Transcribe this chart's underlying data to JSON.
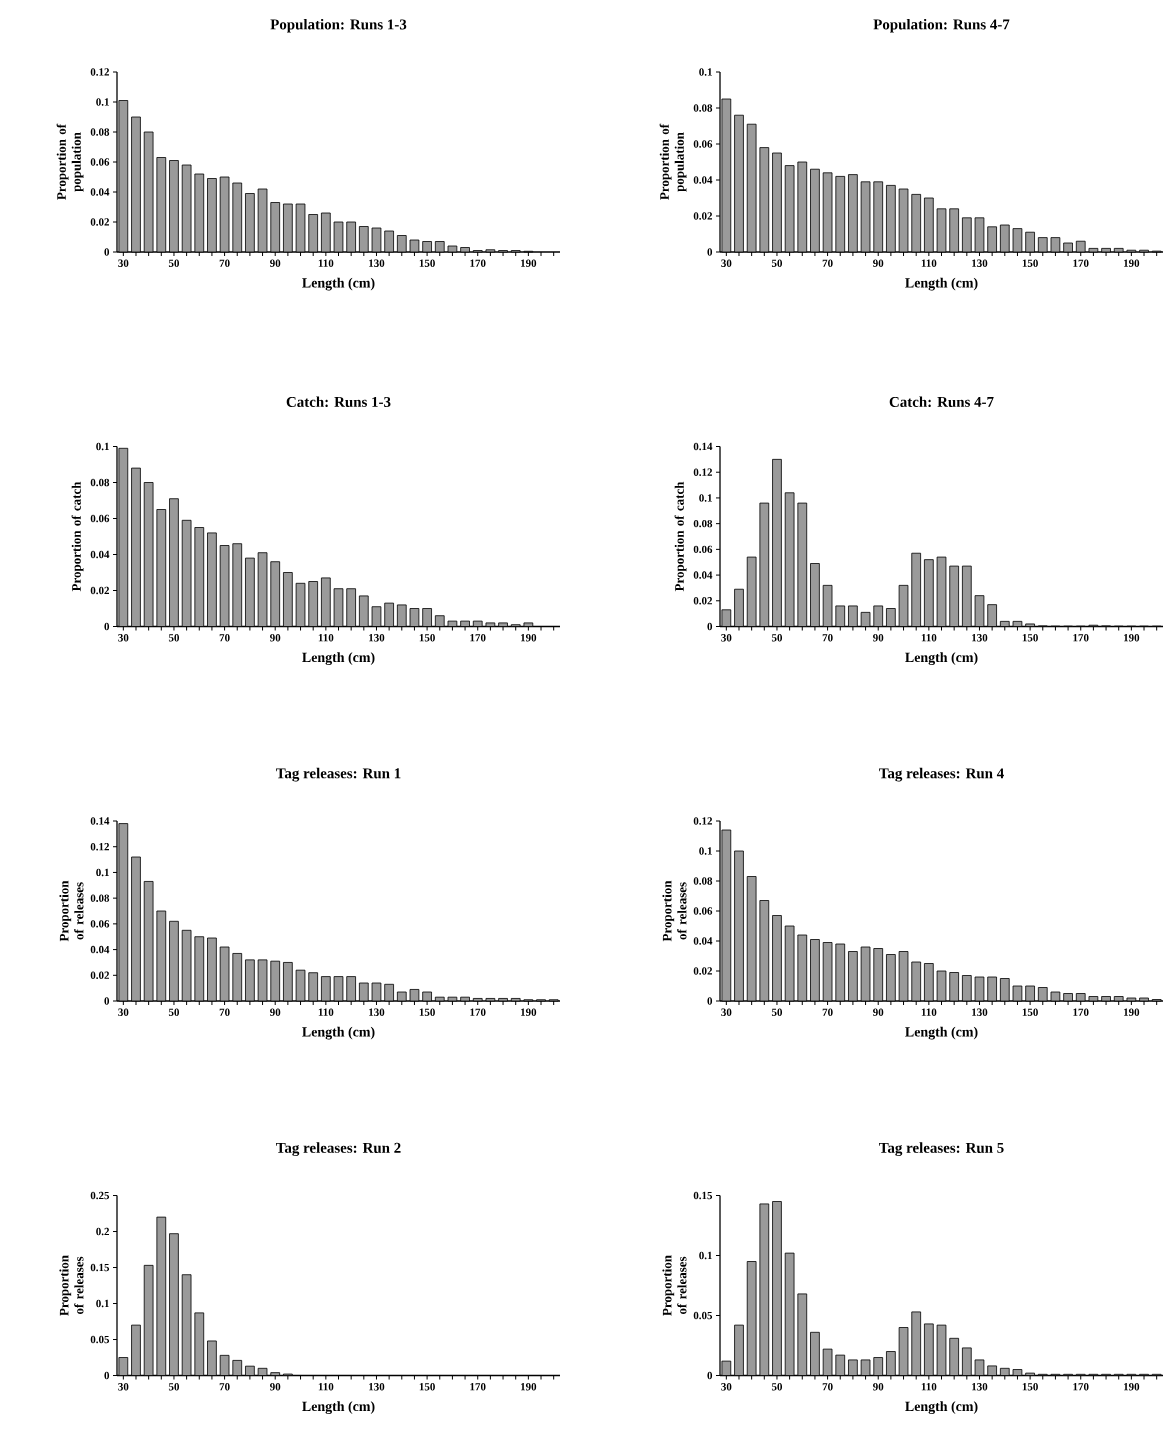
{
  "chart_data": [
    {
      "type": "bar",
      "title": "Population:  Runs 1-3",
      "xlabel": "Length  (cm)",
      "ylabel": "Proportion of population",
      "color": "#9a9a9a",
      "x": [
        30,
        35,
        40,
        45,
        50,
        55,
        60,
        65,
        70,
        75,
        80,
        85,
        90,
        95,
        100,
        105,
        110,
        115,
        120,
        125,
        130,
        135,
        140,
        145,
        150,
        155,
        160,
        165,
        170,
        175,
        180,
        185,
        190
      ],
      "values": [
        0.101,
        0.09,
        0.08,
        0.063,
        0.061,
        0.058,
        0.052,
        0.049,
        0.05,
        0.046,
        0.039,
        0.042,
        0.033,
        0.032,
        0.032,
        0.025,
        0.026,
        0.02,
        0.02,
        0.017,
        0.016,
        0.014,
        0.011,
        0.008,
        0.007,
        0.007,
        0.004,
        0.003,
        0.001,
        0.0015,
        0.001,
        0.001,
        0.0005
      ],
      "xlim": [
        27.5,
        202.5
      ],
      "ylim": [
        0,
        0.12
      ],
      "yticks": [
        0,
        0.02,
        0.04,
        0.06,
        0.08,
        0.1,
        0.12
      ],
      "xticks": [
        30,
        {
          "value": 35,
          "label": null
        },
        {
          "value": 40,
          "label": null
        },
        {
          "value": 45,
          "label": null
        },
        50,
        {
          "value": 55,
          "label": null
        },
        {
          "value": 60,
          "label": null
        },
        {
          "value": 65,
          "label": null
        },
        70,
        {
          "value": 75,
          "label": null
        },
        {
          "value": 80,
          "label": null
        },
        {
          "value": 85,
          "label": null
        },
        90,
        {
          "value": 95,
          "label": null
        },
        {
          "value": 100,
          "label": null
        },
        {
          "value": 105,
          "label": null
        },
        110,
        {
          "value": 115,
          "label": null
        },
        {
          "value": 120,
          "label": null
        },
        {
          "value": 125,
          "label": null
        },
        130,
        {
          "value": 135,
          "label": null
        },
        {
          "value": 140,
          "label": null
        },
        {
          "value": 145,
          "label": null
        },
        150,
        {
          "value": 155,
          "label": null
        },
        {
          "value": 160,
          "label": null
        },
        {
          "value": 165,
          "label": null
        },
        170,
        {
          "value": 175,
          "label": null
        },
        {
          "value": 180,
          "label": null
        },
        {
          "value": 185,
          "label": null
        },
        190,
        {
          "value": 195,
          "label": null
        },
        {
          "value": 200,
          "label": null
        }
      ]
    },
    {
      "type": "bar",
      "title": "Population:  Runs 4-7",
      "xlabel": "Length  (cm)",
      "ylabel": "Proportion of population",
      "color": "#9a9a9a",
      "x": [
        30,
        35,
        40,
        45,
        50,
        55,
        60,
        65,
        70,
        75,
        80,
        85,
        90,
        95,
        100,
        105,
        110,
        115,
        120,
        125,
        130,
        135,
        140,
        145,
        150,
        155,
        160,
        165,
        170,
        175,
        180,
        185,
        190,
        195,
        200
      ],
      "values": [
        0.085,
        0.076,
        0.071,
        0.058,
        0.055,
        0.048,
        0.05,
        0.046,
        0.044,
        0.042,
        0.043,
        0.039,
        0.039,
        0.037,
        0.035,
        0.032,
        0.03,
        0.024,
        0.024,
        0.019,
        0.019,
        0.014,
        0.015,
        0.013,
        0.011,
        0.008,
        0.008,
        0.005,
        0.006,
        0.002,
        0.002,
        0.002,
        0.001,
        0.001,
        0.0005
      ],
      "xlim": [
        27.5,
        202.5
      ],
      "ylim": [
        0,
        0.1
      ],
      "yticks": [
        0,
        0.02,
        0.04,
        0.06,
        0.08,
        0.1
      ],
      "xticks": [
        30,
        {
          "value": 35,
          "label": null
        },
        {
          "value": 40,
          "label": null
        },
        {
          "value": 45,
          "label": null
        },
        50,
        {
          "value": 55,
          "label": null
        },
        {
          "value": 60,
          "label": null
        },
        {
          "value": 65,
          "label": null
        },
        70,
        {
          "value": 75,
          "label": null
        },
        {
          "value": 80,
          "label": null
        },
        {
          "value": 85,
          "label": null
        },
        90,
        {
          "value": 95,
          "label": null
        },
        {
          "value": 100,
          "label": null
        },
        {
          "value": 105,
          "label": null
        },
        110,
        {
          "value": 115,
          "label": null
        },
        {
          "value": 120,
          "label": null
        },
        {
          "value": 125,
          "label": null
        },
        130,
        {
          "value": 135,
          "label": null
        },
        {
          "value": 140,
          "label": null
        },
        {
          "value": 145,
          "label": null
        },
        150,
        {
          "value": 155,
          "label": null
        },
        {
          "value": 160,
          "label": null
        },
        {
          "value": 165,
          "label": null
        },
        170,
        {
          "value": 175,
          "label": null
        },
        {
          "value": 180,
          "label": null
        },
        {
          "value": 185,
          "label": null
        },
        190,
        {
          "value": 195,
          "label": null
        },
        {
          "value": 200,
          "label": null
        }
      ]
    },
    {
      "type": "bar",
      "title": "Catch:  Runs 1-3",
      "xlabel": "Length  (cm)",
      "ylabel": "Proportion of catch",
      "color": "#9a9a9a",
      "x": [
        30,
        35,
        40,
        45,
        50,
        55,
        60,
        65,
        70,
        75,
        80,
        85,
        90,
        95,
        100,
        105,
        110,
        115,
        120,
        125,
        130,
        135,
        140,
        145,
        150,
        155,
        160,
        165,
        170,
        175,
        180,
        185,
        190
      ],
      "values": [
        0.099,
        0.088,
        0.08,
        0.065,
        0.071,
        0.059,
        0.055,
        0.052,
        0.045,
        0.046,
        0.038,
        0.041,
        0.036,
        0.03,
        0.024,
        0.025,
        0.027,
        0.021,
        0.021,
        0.017,
        0.011,
        0.013,
        0.012,
        0.01,
        0.01,
        0.006,
        0.003,
        0.003,
        0.003,
        0.002,
        0.002,
        0.001,
        0.002
      ],
      "xlim": [
        27.5,
        202.5
      ],
      "ylim": [
        0,
        0.1
      ],
      "yticks": [
        0,
        0.02,
        0.04,
        0.06,
        0.08,
        0.1
      ],
      "xticks": [
        30,
        {
          "value": 35,
          "label": null
        },
        {
          "value": 40,
          "label": null
        },
        {
          "value": 45,
          "label": null
        },
        50,
        {
          "value": 55,
          "label": null
        },
        {
          "value": 60,
          "label": null
        },
        {
          "value": 65,
          "label": null
        },
        70,
        {
          "value": 75,
          "label": null
        },
        {
          "value": 80,
          "label": null
        },
        {
          "value": 85,
          "label": null
        },
        90,
        {
          "value": 95,
          "label": null
        },
        {
          "value": 100,
          "label": null
        },
        {
          "value": 105,
          "label": null
        },
        110,
        {
          "value": 115,
          "label": null
        },
        {
          "value": 120,
          "label": null
        },
        {
          "value": 125,
          "label": null
        },
        130,
        {
          "value": 135,
          "label": null
        },
        {
          "value": 140,
          "label": null
        },
        {
          "value": 145,
          "label": null
        },
        150,
        {
          "value": 155,
          "label": null
        },
        {
          "value": 160,
          "label": null
        },
        {
          "value": 165,
          "label": null
        },
        170,
        {
          "value": 175,
          "label": null
        },
        {
          "value": 180,
          "label": null
        },
        {
          "value": 185,
          "label": null
        },
        190,
        {
          "value": 195,
          "label": null
        },
        {
          "value": 200,
          "label": null
        }
      ]
    },
    {
      "type": "bar",
      "title": "Catch:  Runs 4-7",
      "xlabel": "Length  (cm)",
      "ylabel": "Proportion of catch",
      "color": "#9a9a9a",
      "x": [
        30,
        35,
        40,
        45,
        50,
        55,
        60,
        65,
        70,
        75,
        80,
        85,
        90,
        95,
        100,
        105,
        110,
        115,
        120,
        125,
        130,
        135,
        140,
        145,
        150,
        155,
        160,
        165,
        170,
        175,
        180,
        185,
        190,
        195,
        200
      ],
      "values": [
        0.013,
        0.029,
        0.054,
        0.096,
        0.13,
        0.104,
        0.096,
        0.049,
        0.032,
        0.016,
        0.016,
        0.011,
        0.016,
        0.014,
        0.032,
        0.057,
        0.052,
        0.054,
        0.047,
        0.047,
        0.024,
        0.017,
        0.004,
        0.004,
        0.002,
        0.0005,
        0.0003,
        0.0003,
        0.0003,
        0.001,
        0.0005,
        0.0003,
        0.0003,
        0.0003,
        0.0003
      ],
      "xlim": [
        27.5,
        202.5
      ],
      "ylim": [
        0,
        0.14
      ],
      "yticks": [
        0,
        0.02,
        0.04,
        0.06,
        0.08,
        0.1,
        0.12,
        0.14
      ],
      "xticks": [
        30,
        {
          "value": 35,
          "label": null
        },
        {
          "value": 40,
          "label": null
        },
        {
          "value": 45,
          "label": null
        },
        50,
        {
          "value": 55,
          "label": null
        },
        {
          "value": 60,
          "label": null
        },
        {
          "value": 65,
          "label": null
        },
        70,
        {
          "value": 75,
          "label": null
        },
        {
          "value": 80,
          "label": null
        },
        {
          "value": 85,
          "label": null
        },
        90,
        {
          "value": 95,
          "label": null
        },
        {
          "value": 100,
          "label": null
        },
        {
          "value": 105,
          "label": null
        },
        110,
        {
          "value": 115,
          "label": null
        },
        {
          "value": 120,
          "label": null
        },
        {
          "value": 125,
          "label": null
        },
        130,
        {
          "value": 135,
          "label": null
        },
        {
          "value": 140,
          "label": null
        },
        {
          "value": 145,
          "label": null
        },
        150,
        {
          "value": 155,
          "label": null
        },
        {
          "value": 160,
          "label": null
        },
        {
          "value": 165,
          "label": null
        },
        170,
        {
          "value": 175,
          "label": null
        },
        {
          "value": 180,
          "label": null
        },
        {
          "value": 185,
          "label": null
        },
        190,
        {
          "value": 195,
          "label": null
        },
        {
          "value": 200,
          "label": null
        }
      ]
    },
    {
      "type": "bar",
      "title": "Tag  releases:  Run  1",
      "xlabel": "Length  (cm)",
      "ylabel": "Proportion of releases",
      "color": "#9a9a9a",
      "x": [
        30,
        35,
        40,
        45,
        50,
        55,
        60,
        65,
        70,
        75,
        80,
        85,
        90,
        95,
        100,
        105,
        110,
        115,
        120,
        125,
        130,
        135,
        140,
        145,
        150,
        155,
        160,
        165,
        170,
        175,
        180,
        185,
        190,
        195,
        200
      ],
      "values": [
        0.138,
        0.112,
        0.093,
        0.07,
        0.062,
        0.055,
        0.05,
        0.049,
        0.042,
        0.037,
        0.032,
        0.032,
        0.031,
        0.03,
        0.024,
        0.022,
        0.019,
        0.019,
        0.019,
        0.014,
        0.014,
        0.013,
        0.007,
        0.009,
        0.007,
        0.003,
        0.003,
        0.003,
        0.002,
        0.002,
        0.002,
        0.002,
        0.001,
        0.001,
        0.001
      ],
      "xlim": [
        27.5,
        202.5
      ],
      "ylim": [
        0,
        0.14
      ],
      "yticks": [
        0,
        0.02,
        0.04,
        0.06,
        0.08,
        0.1,
        0.12,
        0.14
      ],
      "xticks": [
        30,
        {
          "value": 35,
          "label": null
        },
        {
          "value": 40,
          "label": null
        },
        {
          "value": 45,
          "label": null
        },
        50,
        {
          "value": 55,
          "label": null
        },
        {
          "value": 60,
          "label": null
        },
        {
          "value": 65,
          "label": null
        },
        70,
        {
          "value": 75,
          "label": null
        },
        {
          "value": 80,
          "label": null
        },
        {
          "value": 85,
          "label": null
        },
        90,
        {
          "value": 95,
          "label": null
        },
        {
          "value": 100,
          "label": null
        },
        {
          "value": 105,
          "label": null
        },
        110,
        {
          "value": 115,
          "label": null
        },
        {
          "value": 120,
          "label": null
        },
        {
          "value": 125,
          "label": null
        },
        130,
        {
          "value": 135,
          "label": null
        },
        {
          "value": 140,
          "label": null
        },
        {
          "value": 145,
          "label": null
        },
        150,
        {
          "value": 155,
          "label": null
        },
        {
          "value": 160,
          "label": null
        },
        {
          "value": 165,
          "label": null
        },
        170,
        {
          "value": 175,
          "label": null
        },
        {
          "value": 180,
          "label": null
        },
        {
          "value": 185,
          "label": null
        },
        190,
        {
          "value": 195,
          "label": null
        },
        {
          "value": 200,
          "label": null
        }
      ]
    },
    {
      "type": "bar",
      "title": "Tag  releases:  Run  4",
      "xlabel": "Length  (cm)",
      "ylabel": "Proportion of releases",
      "color": "#9a9a9a",
      "x": [
        30,
        35,
        40,
        45,
        50,
        55,
        60,
        65,
        70,
        75,
        80,
        85,
        90,
        95,
        100,
        105,
        110,
        115,
        120,
        125,
        130,
        135,
        140,
        145,
        150,
        155,
        160,
        165,
        170,
        175,
        180,
        185,
        190,
        195,
        200
      ],
      "values": [
        0.114,
        0.1,
        0.083,
        0.067,
        0.057,
        0.05,
        0.044,
        0.041,
        0.039,
        0.038,
        0.033,
        0.036,
        0.035,
        0.031,
        0.033,
        0.026,
        0.025,
        0.02,
        0.019,
        0.017,
        0.016,
        0.016,
        0.015,
        0.01,
        0.01,
        0.009,
        0.006,
        0.005,
        0.005,
        0.003,
        0.003,
        0.003,
        0.002,
        0.002,
        0.001
      ],
      "xlim": [
        27.5,
        202.5
      ],
      "ylim": [
        0,
        0.12
      ],
      "yticks": [
        0,
        0.02,
        0.04,
        0.06,
        0.08,
        0.1,
        0.12
      ],
      "xticks": [
        30,
        {
          "value": 35,
          "label": null
        },
        {
          "value": 40,
          "label": null
        },
        {
          "value": 45,
          "label": null
        },
        50,
        {
          "value": 55,
          "label": null
        },
        {
          "value": 60,
          "label": null
        },
        {
          "value": 65,
          "label": null
        },
        70,
        {
          "value": 75,
          "label": null
        },
        {
          "value": 80,
          "label": null
        },
        {
          "value": 85,
          "label": null
        },
        90,
        {
          "value": 95,
          "label": null
        },
        {
          "value": 100,
          "label": null
        },
        {
          "value": 105,
          "label": null
        },
        110,
        {
          "value": 115,
          "label": null
        },
        {
          "value": 120,
          "label": null
        },
        {
          "value": 125,
          "label": null
        },
        130,
        {
          "value": 135,
          "label": null
        },
        {
          "value": 140,
          "label": null
        },
        {
          "value": 145,
          "label": null
        },
        150,
        {
          "value": 155,
          "label": null
        },
        {
          "value": 160,
          "label": null
        },
        {
          "value": 165,
          "label": null
        },
        170,
        {
          "value": 175,
          "label": null
        },
        {
          "value": 180,
          "label": null
        },
        {
          "value": 185,
          "label": null
        },
        190,
        {
          "value": 195,
          "label": null
        },
        {
          "value": 200,
          "label": null
        }
      ]
    },
    {
      "type": "bar",
      "title": "Tag  releases:  Run  2",
      "xlabel": "Length  (cm)",
      "ylabel": "Proportion of releases",
      "color": "#9a9a9a",
      "x": [
        30,
        35,
        40,
        45,
        50,
        55,
        60,
        65,
        70,
        75,
        80,
        85,
        90,
        95
      ],
      "values": [
        0.025,
        0.07,
        0.153,
        0.22,
        0.197,
        0.14,
        0.087,
        0.048,
        0.028,
        0.021,
        0.013,
        0.01,
        0.004,
        0.002
      ],
      "xlim": [
        27.5,
        202.5
      ],
      "ylim": [
        0,
        0.25
      ],
      "yticks": [
        0,
        0.05,
        0.1,
        0.15,
        0.2,
        0.25
      ],
      "xticks": [
        30,
        {
          "value": 35,
          "label": null
        },
        {
          "value": 40,
          "label": null
        },
        {
          "value": 45,
          "label": null
        },
        50,
        {
          "value": 55,
          "label": null
        },
        {
          "value": 60,
          "label": null
        },
        {
          "value": 65,
          "label": null
        },
        70,
        {
          "value": 75,
          "label": null
        },
        {
          "value": 80,
          "label": null
        },
        {
          "value": 85,
          "label": null
        },
        90,
        {
          "value": 95,
          "label": null
        },
        {
          "value": 100,
          "label": null
        },
        {
          "value": 105,
          "label": null
        },
        110,
        {
          "value": 115,
          "label": null
        },
        {
          "value": 120,
          "label": null
        },
        {
          "value": 125,
          "label": null
        },
        130,
        {
          "value": 135,
          "label": null
        },
        {
          "value": 140,
          "label": null
        },
        {
          "value": 145,
          "label": null
        },
        150,
        {
          "value": 155,
          "label": null
        },
        {
          "value": 160,
          "label": null
        },
        {
          "value": 165,
          "label": null
        },
        170,
        {
          "value": 175,
          "label": null
        },
        {
          "value": 180,
          "label": null
        },
        {
          "value": 185,
          "label": null
        },
        190,
        {
          "value": 195,
          "label": null
        },
        {
          "value": 200,
          "label": null
        }
      ]
    },
    {
      "type": "bar",
      "title": "Tag  releases:  Run  5",
      "xlabel": "Length  (cm)",
      "ylabel": "Proportion of releases",
      "color": "#9a9a9a",
      "x": [
        30,
        35,
        40,
        45,
        50,
        55,
        60,
        65,
        70,
        75,
        80,
        85,
        90,
        95,
        100,
        105,
        110,
        115,
        120,
        125,
        130,
        135,
        140,
        145,
        150,
        155,
        160,
        165,
        170,
        175,
        180,
        185,
        190,
        195,
        200
      ],
      "values": [
        0.012,
        0.042,
        0.095,
        0.143,
        0.145,
        0.102,
        0.068,
        0.036,
        0.022,
        0.017,
        0.013,
        0.013,
        0.015,
        0.02,
        0.04,
        0.053,
        0.043,
        0.042,
        0.031,
        0.023,
        0.013,
        0.008,
        0.006,
        0.005,
        0.002,
        0.001,
        0.001,
        0.001,
        0.001,
        0.001,
        0.001,
        0.001,
        0.001,
        0.001,
        0.001
      ],
      "xlim": [
        27.5,
        202.5
      ],
      "ylim": [
        0,
        0.15
      ],
      "yticks": [
        0,
        0.05,
        0.1,
        0.15
      ],
      "xticks": [
        30,
        {
          "value": 35,
          "label": null
        },
        {
          "value": 40,
          "label": null
        },
        {
          "value": 45,
          "label": null
        },
        50,
        {
          "value": 55,
          "label": null
        },
        {
          "value": 60,
          "label": null
        },
        {
          "value": 65,
          "label": null
        },
        70,
        {
          "value": 75,
          "label": null
        },
        {
          "value": 80,
          "label": null
        },
        {
          "value": 85,
          "label": null
        },
        90,
        {
          "value": 95,
          "label": null
        },
        {
          "value": 100,
          "label": null
        },
        {
          "value": 105,
          "label": null
        },
        110,
        {
          "value": 115,
          "label": null
        },
        {
          "value": 120,
          "label": null
        },
        {
          "value": 125,
          "label": null
        },
        130,
        {
          "value": 135,
          "label": null
        },
        {
          "value": 140,
          "label": null
        },
        {
          "value": 145,
          "label": null
        },
        150,
        {
          "value": 155,
          "label": null
        },
        {
          "value": 160,
          "label": null
        },
        {
          "value": 165,
          "label": null
        },
        170,
        {
          "value": 175,
          "label": null
        },
        {
          "value": 180,
          "label": null
        },
        {
          "value": 185,
          "label": null
        },
        190,
        {
          "value": 195,
          "label": null
        },
        {
          "value": 200,
          "label": null
        }
      ]
    }
  ]
}
